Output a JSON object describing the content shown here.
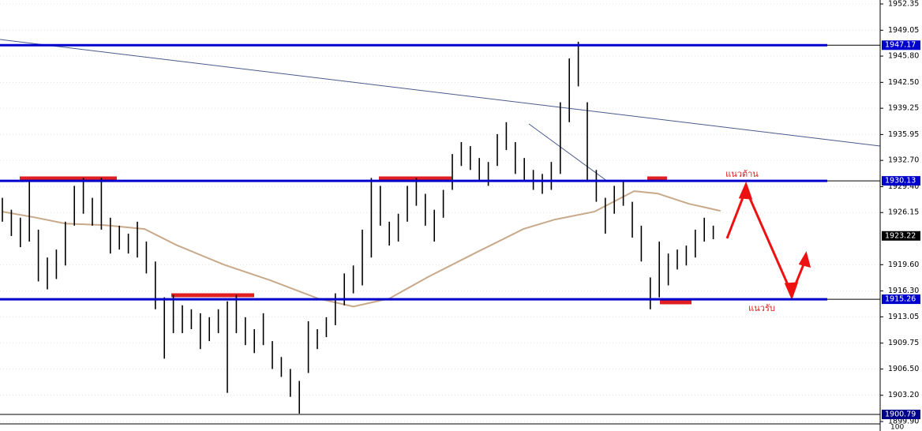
{
  "chart_data": {
    "type": "ohlc",
    "ylim": [
      1899.9,
      1952.35
    ],
    "yticks": [
      1952.35,
      1949.05,
      {
        "value": 1945.8,
        "label": "1945.80"
      },
      {
        "value": 1942.5,
        "label": "1942.50"
      },
      1939.25,
      1935.95,
      {
        "value": 1932.7,
        "label": "1932.70"
      },
      {
        "value": 1929.4,
        "label": "1929.40"
      },
      1926.15,
      {
        "value": 1919.6,
        "label": "1919.60"
      },
      {
        "value": 1916.3,
        "label": "1916.30"
      },
      1913.05,
      1909.75,
      {
        "value": 1906.5,
        "label": "1906.50"
      },
      {
        "value": 1903.2,
        "label": "1903.20"
      },
      {
        "value": 1899.9,
        "label": "1899.90"
      }
    ],
    "grid": true,
    "color": "#000000",
    "high": [
      1928,
      1926.5,
      1925.5,
      1930,
      1924,
      1920.5,
      1921.5,
      1925,
      1929.5,
      1930.5,
      1928,
      1930.5,
      1925.5,
      1924.5,
      1923.5,
      1925,
      1922.5,
      1920,
      1915.5,
      1915.8,
      1914.5,
      1914,
      1913.5,
      1913,
      1914,
      1915,
      1915.8,
      1913,
      1911.5,
      1913.5,
      1910,
      1908,
      1906.5,
      1905,
      1912.5,
      1911.5,
      1913,
      1916,
      1918.5,
      1919.5,
      1924,
      1930.5,
      1929.5,
      1925,
      1926,
      1929.5,
      1930.5,
      1928.5,
      1926.5,
      1929,
      1933.5,
      1935,
      1934.5,
      1933,
      1932.5,
      1936,
      1937.5,
      1935,
      1933,
      1931.5,
      1931,
      1932.5,
      1940,
      1945.5,
      1947.6,
      1940,
      1931.5,
      1928,
      1929.5,
      1930,
      1927.5,
      1924.5,
      1918,
      1922.5,
      1921,
      1921.5,
      1922,
      1924,
      1925.5,
      1924.5
    ],
    "low": [
      1925,
      1923.2,
      1921.8,
      1922.5,
      1917.5,
      1916.5,
      1917.8,
      1919.5,
      1924.5,
      1926,
      1924.5,
      1924,
      1921,
      1921.5,
      1921,
      1920.5,
      1918.5,
      1914,
      1907.8,
      1911,
      1911,
      1911.5,
      1909,
      1910,
      1911,
      1903.5,
      1911,
      1909.5,
      1908.5,
      1909.5,
      1906.5,
      1905.5,
      1903,
      1900.9,
      1906,
      1909,
      1910.5,
      1912,
      1914.5,
      1916,
      1917,
      1920.5,
      1924.5,
      1922,
      1922.5,
      1925,
      1927,
      1924.5,
      1922.5,
      1925.5,
      1929,
      1932,
      1931.5,
      1930,
      1929.5,
      1932,
      1934,
      1931,
      1930,
      1929,
      1928.5,
      1929,
      1931,
      1937.5,
      1942,
      1930,
      1927.5,
      1923.5,
      1926,
      1927,
      1923,
      1920,
      1914,
      1915.5,
      1917,
      1919,
      1919.5,
      1920.5,
      1922.5,
      1922.8
    ],
    "ma": {
      "color": "#c8a98a",
      "x": [
        0,
        3.5,
        7,
        11.4,
        15.8,
        19.3,
        24.6,
        29.8,
        35.1,
        39,
        43,
        47.4,
        52.6,
        57.9,
        61.4,
        65.8,
        68,
        70.2,
        72.8,
        76.3,
        79.8
      ],
      "values": [
        1926.26,
        1925.56,
        1924.77,
        1924.57,
        1924.08,
        1922.09,
        1919.61,
        1917.63,
        1915.35,
        1914.35,
        1915.35,
        1918.12,
        1921.1,
        1924.08,
        1925.27,
        1926.26,
        1927.55,
        1928.84,
        1928.54,
        1927.25,
        1926.36
      ]
    },
    "levels": [
      {
        "value": 1947.17,
        "color": "#0000cc"
      },
      {
        "value": 1930.13,
        "color": "#0000cc"
      },
      {
        "value": 1915.26,
        "color": "#0000cc"
      },
      {
        "value": 1900.79,
        "color": "#000000"
      }
    ],
    "current_price": 1923.22,
    "annotations": [
      "แนวต้าน",
      "แนวรับ"
    ],
    "subwindow_label": "100"
  }
}
